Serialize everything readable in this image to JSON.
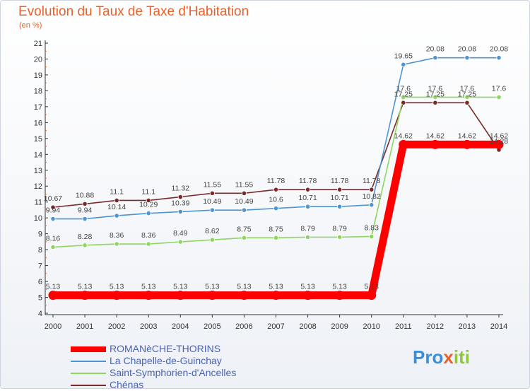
{
  "header": {
    "title": "Evolution du Taux de Taxe d'Habitation",
    "subtitle": "(en %)"
  },
  "logo": {
    "parts": [
      "Pro",
      "x",
      "iti"
    ]
  },
  "chart_data": {
    "type": "line",
    "categories": [
      "2000",
      "2001",
      "2002",
      "2003",
      "2004",
      "2005",
      "2006",
      "2007",
      "2008",
      "2009",
      "2010",
      "2011",
      "2012",
      "2013",
      "2014"
    ],
    "ylim": [
      4,
      21
    ],
    "yticks": [
      4,
      5,
      6,
      7,
      8,
      9,
      10,
      11,
      12,
      13,
      14,
      15,
      16,
      17,
      18,
      19,
      20,
      21
    ],
    "grid": false,
    "legend_position": "bottom-left",
    "series": [
      {
        "name": "ROMANèCHE-THORINS",
        "color": "#ff0000",
        "values": [
          5.13,
          5.13,
          5.13,
          5.13,
          5.13,
          5.13,
          5.13,
          5.13,
          5.13,
          5.13,
          5.13,
          14.62,
          14.62,
          14.62,
          14.62
        ],
        "labels": [
          "5.13",
          "5.13",
          "5.13",
          "5.13",
          "5.13",
          "5.13",
          "5.13",
          "5.13",
          "5.13",
          "5.13",
          "5.13",
          "14.62",
          "14.62",
          "14.62",
          "14.62"
        ]
      },
      {
        "name": "La Chapelle-de-Guinchay",
        "color": "#4f95d1",
        "values": [
          9.94,
          9.94,
          10.14,
          10.29,
          10.39,
          10.49,
          10.49,
          10.6,
          10.71,
          10.71,
          10.82,
          19.65,
          20.08,
          20.08,
          20.08
        ],
        "labels": [
          "9.94",
          "9.94",
          "10.14",
          "10.29",
          "10.39",
          "10.49",
          "10.49",
          "10.6",
          "10.71",
          "10.71",
          "10.82",
          "19.65",
          "20.08",
          "20.08",
          "20.08"
        ]
      },
      {
        "name": "Saint-Symphorien-d'Ancelles",
        "color": "#8ed660",
        "values": [
          8.16,
          8.28,
          8.36,
          8.36,
          8.49,
          8.62,
          8.75,
          8.75,
          8.79,
          8.79,
          8.83,
          17.6,
          17.6,
          17.6,
          17.6
        ],
        "labels": [
          "8.16",
          "8.28",
          "8.36",
          "8.36",
          "8.49",
          "8.62",
          "8.75",
          "8.75",
          "8.79",
          "8.79",
          "8.83",
          "17.6",
          "17.6",
          "17.6",
          "17.6"
        ]
      },
      {
        "name": "Chénas",
        "color": "#7b2a2a",
        "values": [
          10.67,
          10.88,
          11.1,
          11.1,
          11.32,
          11.55,
          11.55,
          11.78,
          11.78,
          11.78,
          11.78,
          17.25,
          17.25,
          17.25,
          14.28
        ],
        "labels": [
          "10.67",
          "10.88",
          "11.1",
          "11.1",
          "11.32",
          "11.55",
          "11.55",
          "11.78",
          "11.78",
          "11.78",
          "11.78",
          "17.25",
          "17.25",
          "17.25",
          "14.28"
        ]
      }
    ]
  }
}
